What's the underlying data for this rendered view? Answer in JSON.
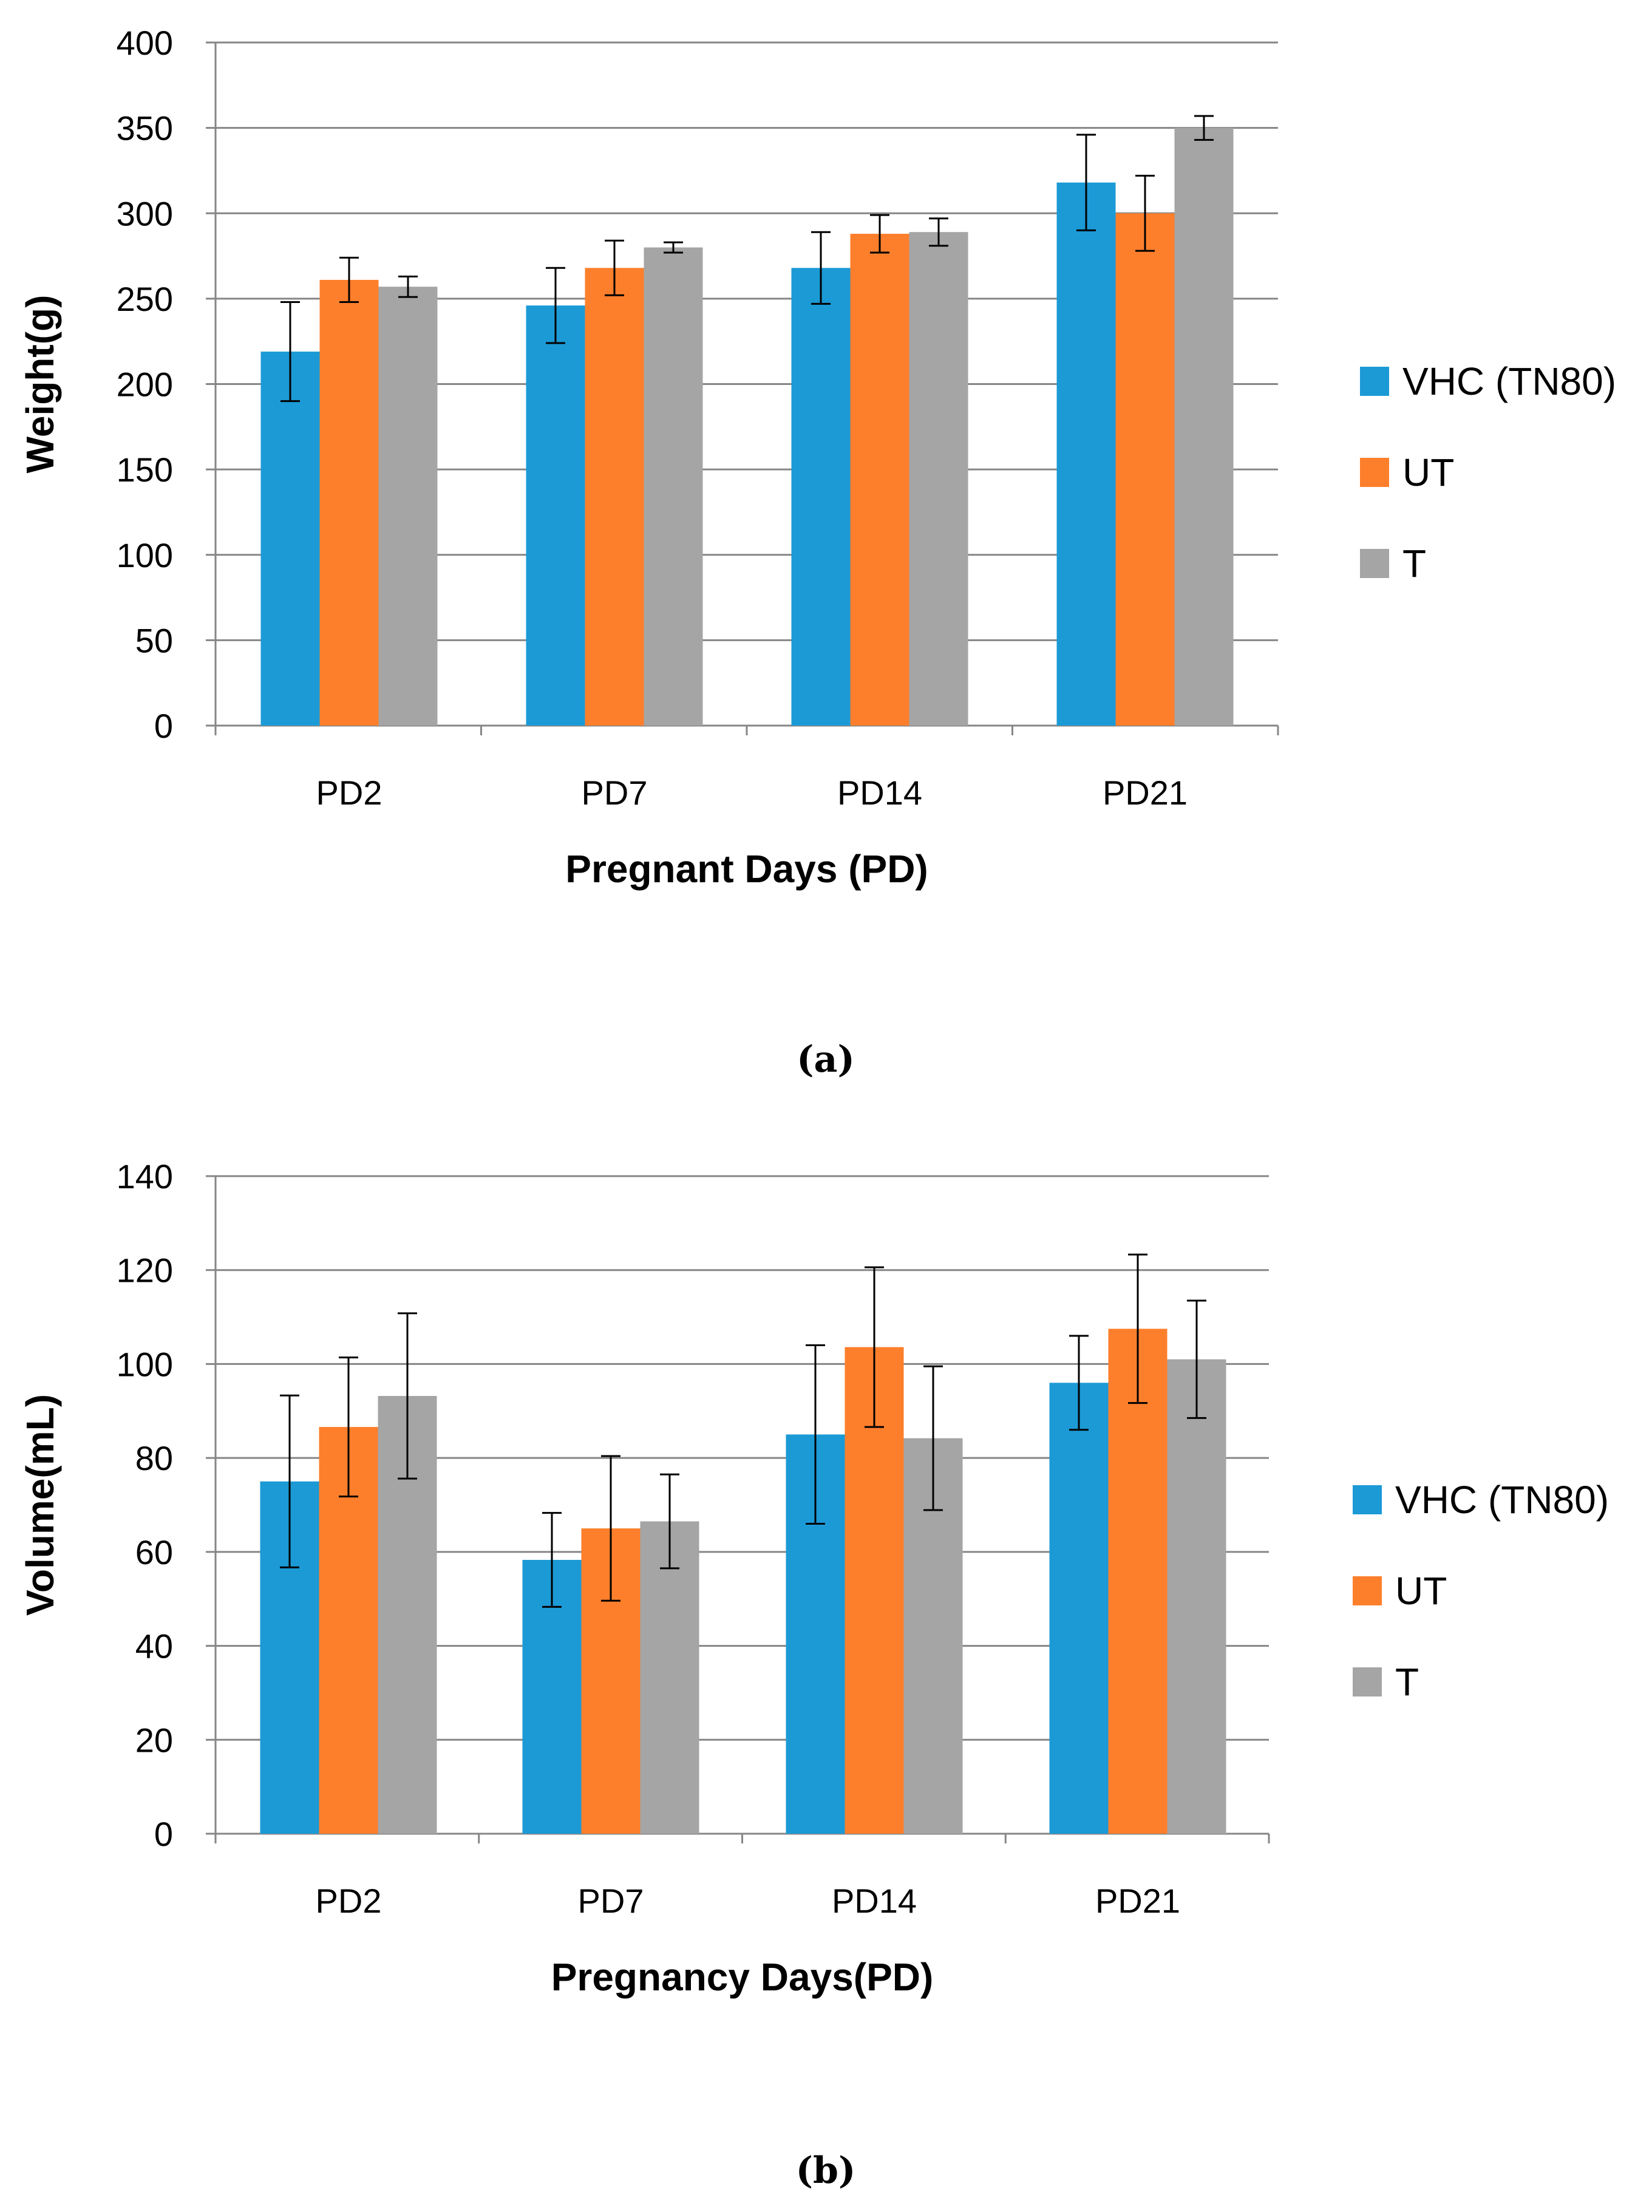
{
  "chart_data": [
    {
      "type": "bar",
      "panel_label": "(a)",
      "categories": [
        "PD2",
        "PD7",
        "PD14",
        "PD21"
      ],
      "series": [
        {
          "name": "VHC (TN80)",
          "color": "#1c9ad6",
          "values": [
            219,
            246,
            268,
            318
          ],
          "errors": [
            29,
            22,
            21,
            28
          ]
        },
        {
          "name": "UT",
          "color": "#fd7f2c",
          "values": [
            261,
            268,
            288,
            300
          ],
          "errors": [
            13,
            16,
            11,
            22
          ]
        },
        {
          "name": "T",
          "color": "#a5a5a5",
          "values": [
            257,
            280,
            289,
            350
          ],
          "errors": [
            6,
            3,
            8,
            7
          ]
        }
      ],
      "ylabel": "Weight(g)",
      "xlabel": "Pregnant Days (PD)",
      "ylim": [
        0,
        400
      ],
      "yticks": [
        0,
        50,
        100,
        150,
        200,
        250,
        300,
        350,
        400
      ],
      "grid": true,
      "legend": "right"
    },
    {
      "type": "bar",
      "panel_label": "(b)",
      "categories": [
        "PD2",
        "PD7",
        "PD14",
        "PD21"
      ],
      "series": [
        {
          "name": "VHC (TN80)",
          "color": "#1c9ad6",
          "values": [
            75,
            58.3,
            85,
            96
          ],
          "errors": [
            18.3,
            10,
            19,
            10
          ]
        },
        {
          "name": "UT",
          "color": "#fd7f2c",
          "values": [
            86.6,
            65,
            103.6,
            107.5
          ],
          "errors": [
            14.8,
            15.4,
            17,
            15.8
          ]
        },
        {
          "name": "T",
          "color": "#a5a5a5",
          "values": [
            93.2,
            66.5,
            84.2,
            101
          ],
          "errors": [
            17.6,
            10,
            15.3,
            12.5
          ]
        }
      ],
      "ylabel": "Volume(mL)",
      "xlabel": "Pregnancy Days(PD)",
      "ylim": [
        0,
        140
      ],
      "yticks": [
        0,
        20,
        40,
        60,
        80,
        100,
        120,
        140
      ],
      "grid": true,
      "legend": "right"
    }
  ]
}
